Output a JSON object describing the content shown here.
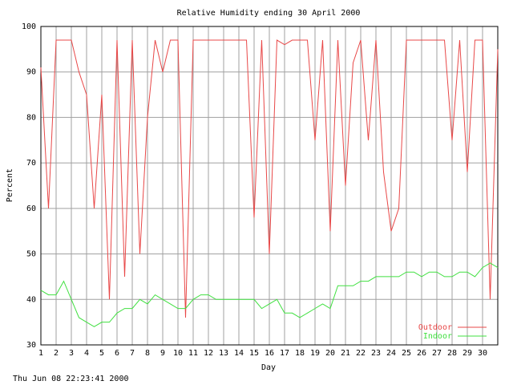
{
  "chart_data": {
    "type": "line",
    "title": "Relative Humidity ending 30 April 2000",
    "x_label": "Day",
    "y_label": "Percent",
    "footer": "Thu Jun 08 22:23:41 2000",
    "x": [
      1,
      1.5,
      2,
      2.5,
      3,
      3.5,
      4,
      4.5,
      5,
      5.5,
      6,
      6.5,
      7,
      7.5,
      8,
      8.5,
      9,
      9.5,
      10,
      10.5,
      11,
      11.5,
      12,
      12.5,
      13,
      13.5,
      14,
      14.5,
      15,
      15.5,
      16,
      16.5,
      17,
      17.5,
      18,
      18.5,
      19,
      19.5,
      20,
      20.5,
      21,
      21.5,
      22,
      22.5,
      23,
      23.5,
      24,
      24.5,
      25,
      25.5,
      26,
      26.5,
      27,
      27.5,
      28,
      28.5,
      29,
      29.5,
      30,
      30.5,
      31
    ],
    "series": [
      {
        "name": "Outdoor",
        "color": "#e84848",
        "values": [
          91,
          60,
          97,
          97,
          97,
          90,
          85,
          60,
          85,
          40,
          97,
          45,
          97,
          50,
          80,
          97,
          90,
          97,
          97,
          36,
          97,
          97,
          97,
          97,
          97,
          97,
          97,
          97,
          58,
          97,
          50,
          97,
          96,
          97,
          97,
          97,
          75,
          97,
          55,
          97,
          65,
          92,
          97,
          75,
          97,
          68,
          55,
          60,
          97,
          97,
          97,
          97,
          97,
          97,
          75,
          97,
          68,
          97,
          97,
          40,
          95
        ]
      },
      {
        "name": "Indoor",
        "color": "#40e040",
        "values": [
          42,
          41,
          41,
          44,
          40,
          36,
          35,
          34,
          35,
          35,
          37,
          38,
          38,
          40,
          39,
          41,
          40,
          39,
          38,
          38,
          40,
          41,
          41,
          40,
          40,
          40,
          40,
          40,
          40,
          38,
          39,
          40,
          37,
          37,
          36,
          37,
          38,
          39,
          38,
          43,
          43,
          43,
          44,
          44,
          45,
          45,
          45,
          45,
          46,
          46,
          45,
          46,
          46,
          45,
          45,
          46,
          46,
          45,
          47,
          48,
          47
        ]
      }
    ],
    "xlim": [
      1,
      31
    ],
    "ylim": [
      30,
      100
    ],
    "xticks": [
      1,
      2,
      3,
      4,
      5,
      6,
      7,
      8,
      9,
      10,
      11,
      12,
      13,
      14,
      15,
      16,
      17,
      18,
      19,
      20,
      21,
      22,
      23,
      24,
      25,
      26,
      27,
      28,
      29,
      30
    ],
    "yticks": [
      30,
      40,
      50,
      60,
      70,
      80,
      90,
      100
    ],
    "grid": true,
    "legend": "lower-right"
  }
}
